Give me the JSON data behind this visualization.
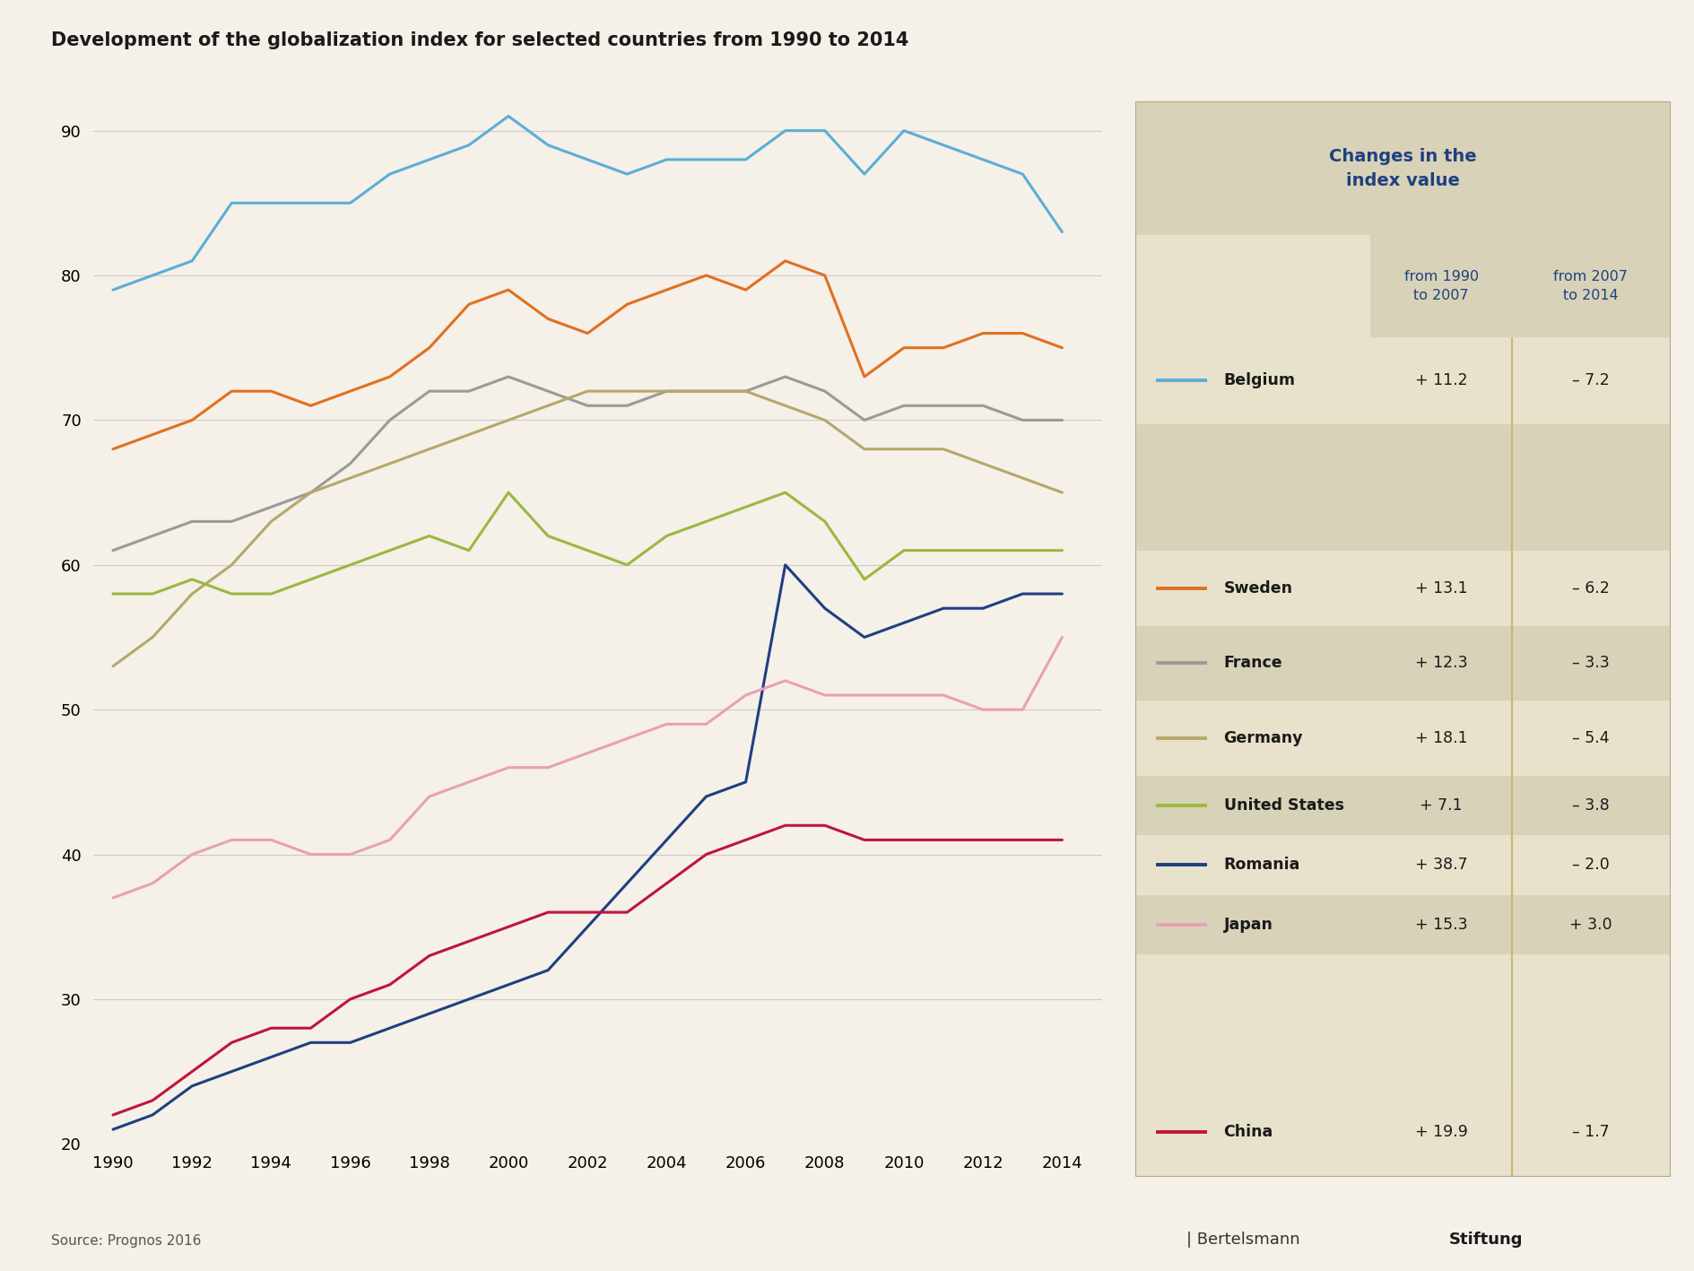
{
  "title": "Development of the globalization index for selected countries from 1990 to 2014",
  "source": "Source: Prognos 2016",
  "background_color": "#f5f0e8",
  "years": [
    1990,
    1991,
    1992,
    1993,
    1994,
    1995,
    1996,
    1997,
    1998,
    1999,
    2000,
    2001,
    2002,
    2003,
    2004,
    2005,
    2006,
    2007,
    2008,
    2009,
    2010,
    2011,
    2012,
    2013,
    2014
  ],
  "series": {
    "Belgium": {
      "color": "#5baed6",
      "values": [
        79,
        80,
        81,
        85,
        85,
        85,
        85,
        87,
        88,
        89,
        91,
        89,
        88,
        87,
        88,
        88,
        88,
        90,
        90,
        87,
        90,
        89,
        88,
        87,
        83
      ]
    },
    "Sweden": {
      "color": "#e07020",
      "values": [
        68,
        69,
        70,
        72,
        72,
        71,
        72,
        73,
        75,
        78,
        79,
        77,
        76,
        78,
        79,
        80,
        79,
        81,
        80,
        73,
        75,
        75,
        76,
        76,
        75
      ]
    },
    "France": {
      "color": "#9a9a9a",
      "values": [
        61,
        62,
        63,
        63,
        64,
        65,
        67,
        70,
        72,
        72,
        73,
        72,
        71,
        71,
        72,
        72,
        72,
        73,
        72,
        70,
        71,
        71,
        71,
        70,
        70
      ]
    },
    "Germany": {
      "color": "#b5a86a",
      "values": [
        53,
        55,
        58,
        60,
        63,
        65,
        66,
        67,
        68,
        69,
        70,
        71,
        72,
        72,
        72,
        72,
        72,
        71,
        70,
        68,
        68,
        68,
        67,
        66,
        65
      ]
    },
    "United States": {
      "color": "#9ab840",
      "values": [
        58,
        58,
        59,
        58,
        58,
        59,
        60,
        61,
        62,
        61,
        65,
        62,
        61,
        60,
        62,
        63,
        64,
        65,
        63,
        59,
        61,
        61,
        61,
        61,
        61
      ]
    },
    "Romania": {
      "color": "#1f3f80",
      "values": [
        21,
        22,
        24,
        25,
        26,
        27,
        27,
        28,
        29,
        30,
        31,
        32,
        35,
        38,
        41,
        44,
        45,
        60,
        57,
        55,
        56,
        57,
        57,
        58,
        58
      ]
    },
    "Japan": {
      "color": "#e8a0b8",
      "values": [
        37,
        38,
        40,
        41,
        41,
        40,
        40,
        41,
        44,
        45,
        46,
        46,
        47,
        48,
        49,
        49,
        51,
        52,
        51,
        51,
        51,
        51,
        50,
        50,
        55
      ]
    },
    "China": {
      "color": "#c0143c",
      "values": [
        22,
        23,
        25,
        27,
        28,
        28,
        30,
        31,
        33,
        34,
        35,
        36,
        36,
        36,
        38,
        40,
        41,
        42,
        42,
        41,
        41,
        41,
        41,
        41,
        41
      ]
    }
  },
  "legend_entries": [
    {
      "country": "Belgium",
      "c1": "+ 11.2",
      "c2": "– 7.2"
    },
    {
      "country": "Sweden",
      "c1": "+ 13.1",
      "c2": "– 6.2"
    },
    {
      "country": "France",
      "c1": "+ 12.3",
      "c2": "– 3.3"
    },
    {
      "country": "Germany",
      "c1": "+ 18.1",
      "c2": "– 5.4"
    },
    {
      "country": "United States",
      "c1": "+ 7.1",
      "c2": "– 3.8"
    },
    {
      "country": "Romania",
      "c1": "+ 38.7",
      "c2": "– 2.0"
    },
    {
      "country": "Japan",
      "c1": "+ 15.3",
      "c2": "+ 3.0"
    },
    {
      "country": "China",
      "c1": "+ 19.9",
      "c2": "– 1.7"
    }
  ],
  "ylim": [
    20,
    92
  ],
  "yticks": [
    20,
    30,
    40,
    50,
    60,
    70,
    80,
    90
  ],
  "table_header_color": "#1f4080",
  "table_bg_light": "#e8e2cc",
  "table_bg_dark": "#d8d2b8",
  "divider_color": "#c8b870",
  "grid_color": "#cccccc"
}
